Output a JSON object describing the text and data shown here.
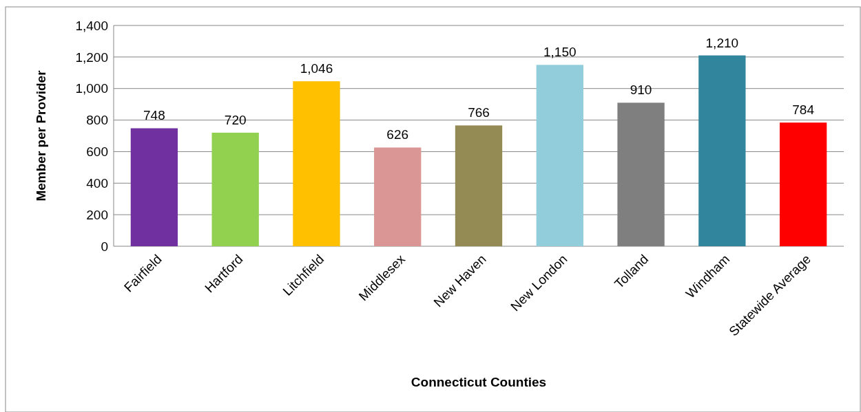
{
  "chart_data": {
    "type": "bar",
    "xlabel": "Connecticut Counties",
    "ylabel": "Member per Provider",
    "categories": [
      "Fairfield",
      "Hartford",
      "Litchfield",
      "Middlesex",
      "New Haven",
      "New London",
      "Tolland",
      "Windham",
      "Statewide Average"
    ],
    "values": [
      748,
      720,
      1046,
      626,
      766,
      1150,
      910,
      1210,
      784
    ],
    "colors": [
      "#7030a0",
      "#92d050",
      "#ffc000",
      "#d99694",
      "#948a54",
      "#92cddc",
      "#7f7f7f",
      "#31859c",
      "#ff0000"
    ],
    "value_labels": [
      "748",
      "720",
      "1,046",
      "626",
      "766",
      "1,150",
      "910",
      "1,210",
      "784"
    ],
    "ylim": [
      0,
      1400
    ],
    "yticks": [
      {
        "value": 0,
        "label": "0"
      },
      {
        "value": 200,
        "label": "200"
      },
      {
        "value": 400,
        "label": "400"
      },
      {
        "value": 600,
        "label": "600"
      },
      {
        "value": 800,
        "label": "800"
      },
      {
        "value": 1000,
        "label": "1,000"
      },
      {
        "value": 1200,
        "label": "1,200"
      },
      {
        "value": 1400,
        "label": "1,400"
      }
    ],
    "grid": "y"
  }
}
